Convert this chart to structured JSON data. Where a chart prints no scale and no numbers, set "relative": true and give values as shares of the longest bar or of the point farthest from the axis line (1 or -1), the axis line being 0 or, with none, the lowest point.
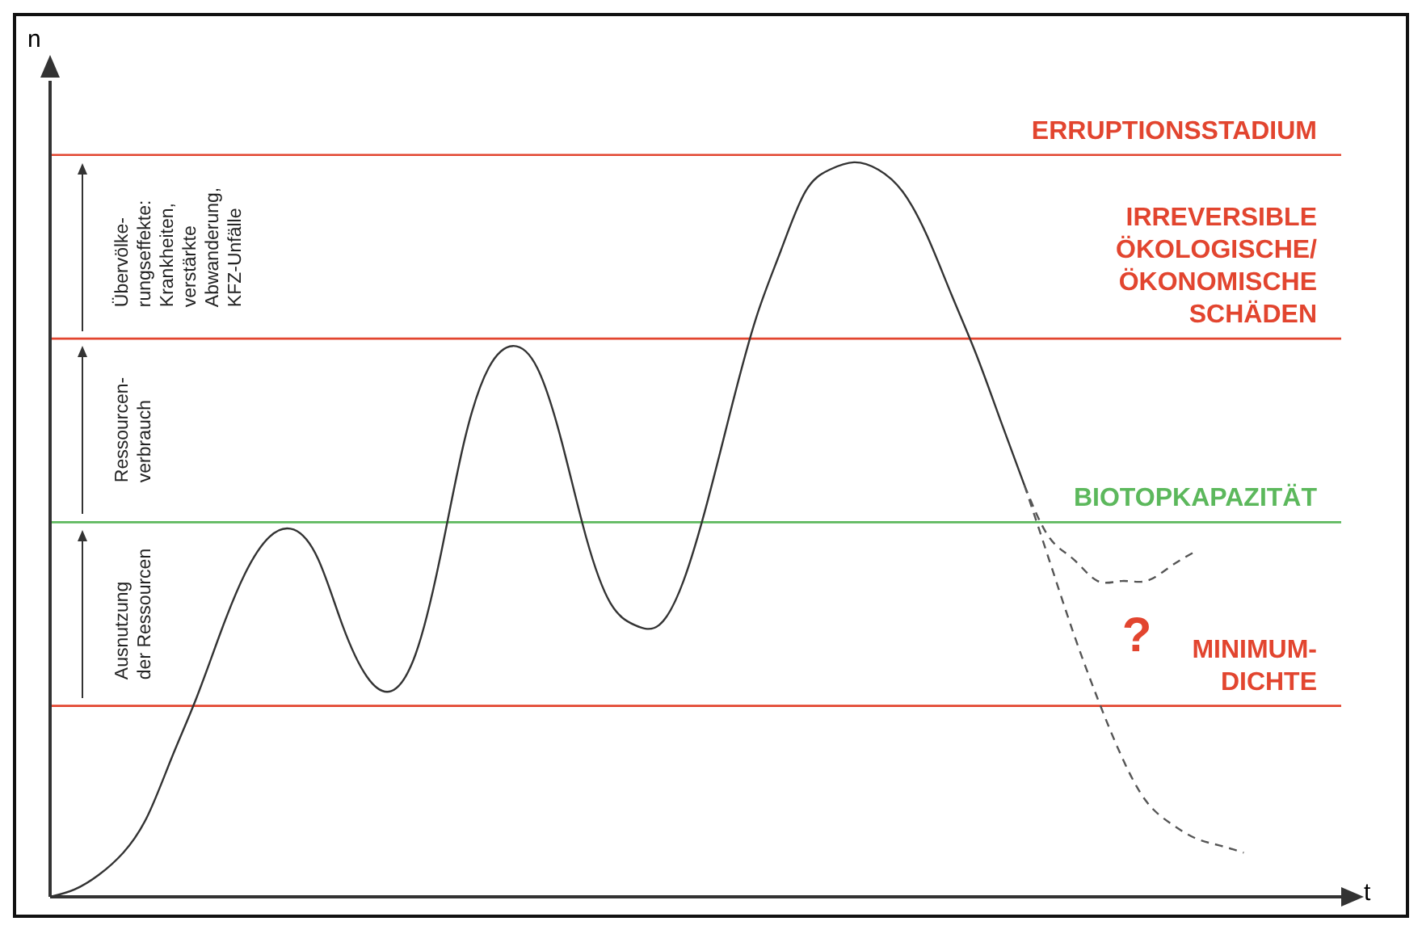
{
  "chart_data": {
    "type": "line",
    "relative": true,
    "xlabel": "t",
    "ylabel": "n",
    "categories": [
      null,
      null,
      null,
      null,
      null,
      null,
      null,
      null,
      null,
      null,
      null,
      null,
      null,
      null,
      null,
      null,
      null,
      null,
      null,
      null,
      null,
      null,
      null,
      null,
      null,
      null,
      null,
      null,
      null,
      null,
      null,
      null,
      null,
      null,
      null,
      null,
      null,
      null,
      null,
      null,
      null,
      null,
      null,
      null,
      null,
      null,
      null,
      null,
      null,
      null,
      null,
      null,
      null,
      null
    ],
    "series": [
      {
        "color": "#333333",
        "line_style": "solid",
        "values": [
          0,
          0.01,
          0.03,
          0.06,
          0.11,
          0.19,
          0.27,
          0.36,
          0.44,
          0.49,
          0.5,
          0.46,
          0.37,
          0.3,
          0.28,
          0.33,
          0.46,
          0.62,
          0.72,
          0.75,
          0.72,
          0.62,
          0.49,
          0.4,
          0.37,
          0.37,
          0.43,
          0.54,
          0.67,
          0.79,
          0.88,
          0.96,
          0.99,
          1,
          0.99,
          0.96,
          0.9,
          0.82,
          0.74,
          0.65,
          0.56,
          null,
          null,
          null,
          null,
          null,
          null,
          null,
          null,
          null,
          null,
          null,
          null,
          null
        ]
      },
      {
        "color": "#555555",
        "line_style": "dashed",
        "values": [
          null,
          null,
          null,
          null,
          null,
          null,
          null,
          null,
          null,
          null,
          null,
          null,
          null,
          null,
          null,
          null,
          null,
          null,
          null,
          null,
          null,
          null,
          null,
          null,
          null,
          null,
          null,
          null,
          null,
          null,
          null,
          null,
          null,
          null,
          null,
          null,
          null,
          null,
          null,
          null,
          0.56,
          0.49,
          0.46,
          0.43,
          0.43,
          0.43,
          0.45,
          0.47,
          null,
          null,
          null,
          null,
          null,
          null
        ]
      },
      {
        "color": "#555555",
        "line_style": "dashed",
        "values": [
          null,
          null,
          null,
          null,
          null,
          null,
          null,
          null,
          null,
          null,
          null,
          null,
          null,
          null,
          null,
          null,
          null,
          null,
          null,
          null,
          null,
          null,
          null,
          null,
          null,
          null,
          null,
          null,
          null,
          null,
          null,
          null,
          null,
          null,
          null,
          null,
          null,
          null,
          null,
          null,
          0.56,
          0.46,
          0.36,
          0.27,
          0.19,
          0.13,
          0.1,
          0.08,
          0.07,
          0.06,
          null,
          null,
          null,
          null
        ]
      }
    ],
    "ref_lines": [
      {
        "axis": "y",
        "value": 1.01,
        "label": "ERRUPTIONSSTADIUM",
        "color": "#e2452f"
      },
      {
        "axis": "y",
        "value": 0.76,
        "label": "IRREVERSIBLE\nÖKOLOGISCHE/\nÖKONOMISCHE\nSCHÄDEN",
        "color": "#e2452f"
      },
      {
        "axis": "y",
        "value": 0.51,
        "label": "BIOTOPKAPAZITÄT",
        "color": "#5cb85c"
      },
      {
        "axis": "y",
        "value": 0.26,
        "label": "MINIMUM-\nDICHTE",
        "color": "#e2452f"
      }
    ],
    "annotations": [
      "Übervölke-\nrungseffekte:\nKrankheiten,\nverstärkte\nAbwanderung,\nKFZ-Unfälle",
      "Ressourcen-\nverbrauch",
      "Ausnutzung\nder Ressourcen",
      "?"
    ]
  }
}
